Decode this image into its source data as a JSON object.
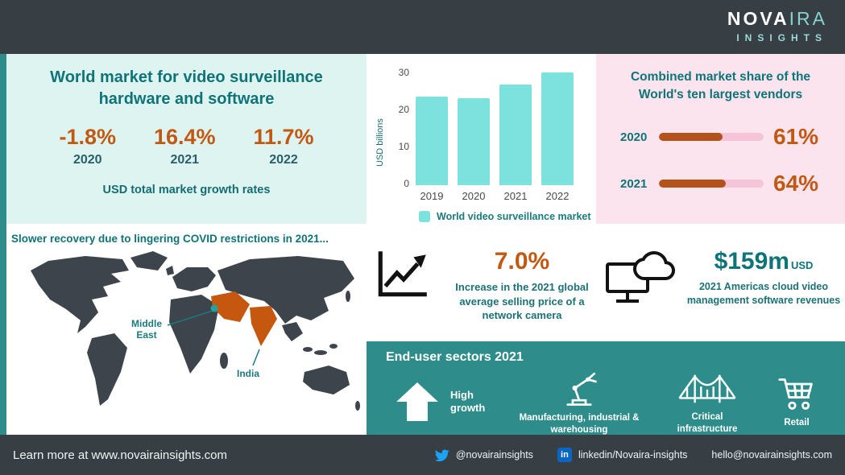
{
  "header": {
    "logo_a": "NOVA",
    "logo_b": "IRA",
    "logo_sub": "INSIGHTS"
  },
  "panels": {
    "market": {
      "title": "World market for video surveillance hardware and software",
      "stats": [
        {
          "value": "-1.8%",
          "year": "2020"
        },
        {
          "value": "16.4%",
          "year": "2021"
        },
        {
          "value": "11.7%",
          "year": "2022"
        }
      ],
      "caption": "USD total market growth rates"
    },
    "vendors": {
      "title": "Combined market share of the World's ten largest vendors",
      "rows": [
        {
          "year": "2020",
          "percent": "61%",
          "value": 61
        },
        {
          "year": "2021",
          "percent": "64%",
          "value": 64
        }
      ],
      "track_color": "#f6c4d9",
      "fill_color": "#b3531a"
    },
    "covid_note": "Slower recovery due to lingering COVID restrictions in 2021...",
    "map": {
      "middle_east_line1": "Middle",
      "middle_east_line2": "East",
      "india": "India",
      "highlight_color": "#c5570e",
      "land_color": "#3d444c"
    },
    "asp": {
      "value": "7.0%",
      "desc": "Increase in the 2021 global average selling price of a network camera"
    },
    "cloud": {
      "value": "$159m",
      "unit": "USD",
      "desc": "2021 Americas cloud video management software revenues"
    },
    "sectors": {
      "title": "End-user sectors 2021",
      "items": [
        {
          "label": "High growth"
        },
        {
          "label": "Manufacturing, industrial & warehousing"
        },
        {
          "label": "Critical infrastructure"
        },
        {
          "label": "Retail"
        }
      ]
    }
  },
  "footer": {
    "learn_more": "Learn more at www.novairainsights.com",
    "twitter_handle": "@novairainsights",
    "linkedin_handle": "linkedin/Novaira-insights",
    "email": "hello@novairainsights.com"
  },
  "icons": {
    "linkedin_glyph": "in"
  },
  "chart_data": {
    "type": "bar",
    "categories": [
      "2019",
      "2020",
      "2021",
      "2022"
    ],
    "values": [
      22,
      21.5,
      25,
      28
    ],
    "title": "",
    "xlabel": "",
    "ylabel": "USD billions",
    "ylim": [
      0,
      30
    ],
    "yticks": [
      0,
      10,
      20,
      30
    ],
    "legend": "World video surveillance market",
    "bar_color": "#7de1de",
    "grid": false,
    "legend_position": "bottom"
  },
  "colors": {
    "accent_teal": "#0f7478",
    "accent_orange": "#c25912",
    "panel_mint": "#def4f0",
    "panel_pink": "#fbe4ee",
    "panel_teal": "#2e8d8b",
    "bar_cyan": "#7de1de"
  }
}
